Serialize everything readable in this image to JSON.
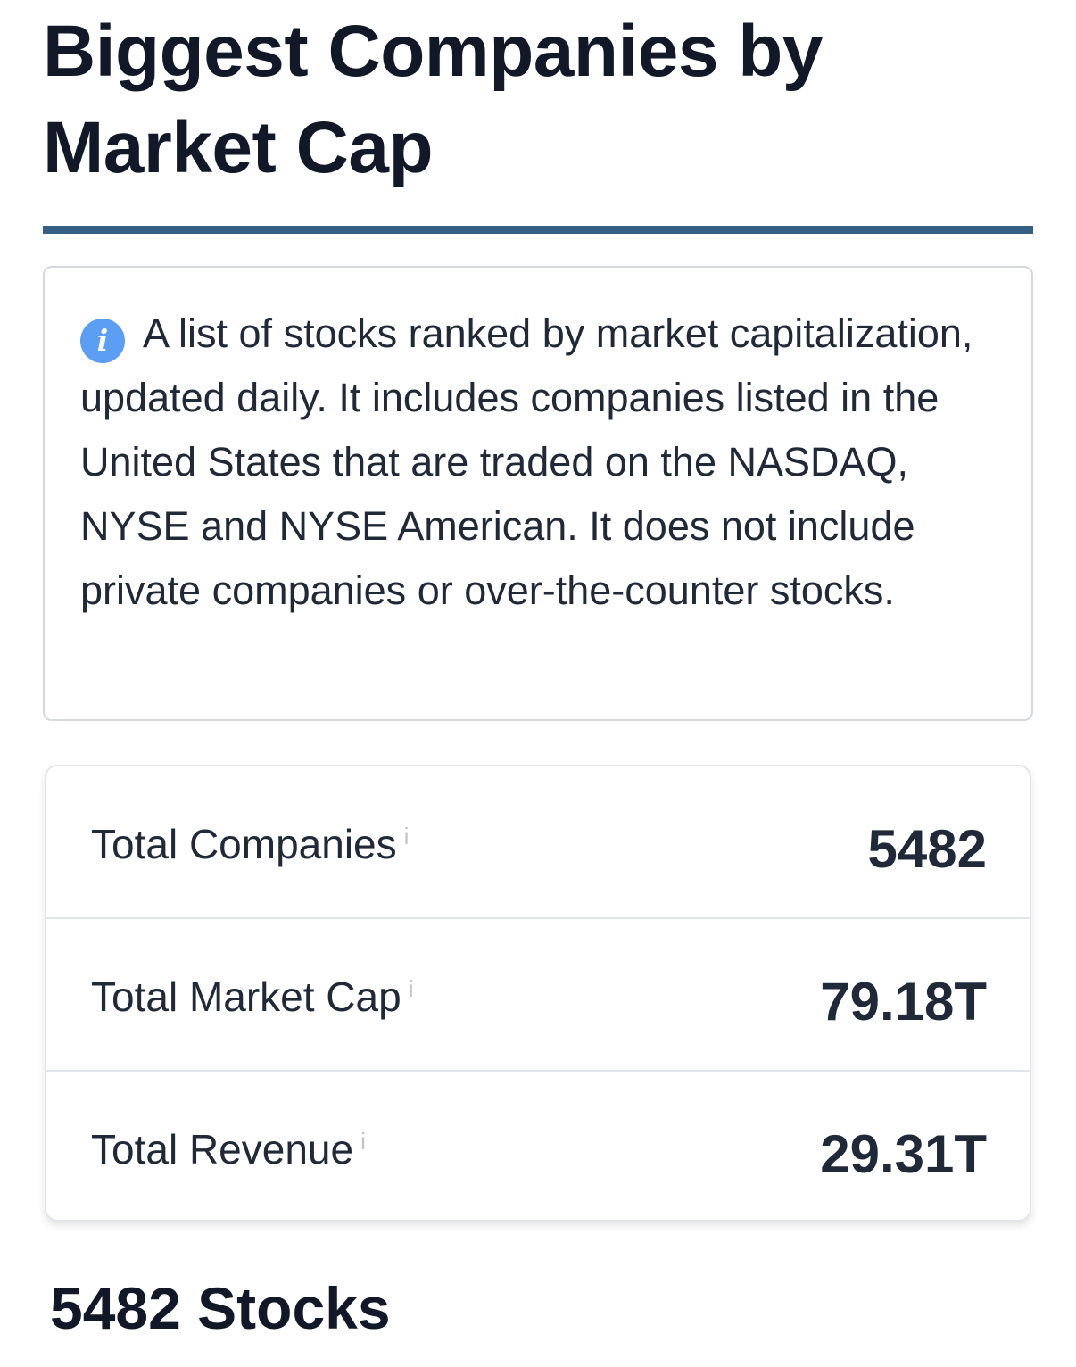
{
  "page": {
    "title": "Biggest Companies by Market Cap"
  },
  "info": {
    "icon": "info-icon",
    "icon_glyph": "i",
    "text": "A list of stocks ranked by market capitalization, updated daily. It includes companies listed in the United States that are traded on the NASDAQ, NYSE and NYSE American. It does not include private companies or over-the-counter stocks."
  },
  "stats": [
    {
      "label": "Total Companies",
      "tooltip_glyph": "i",
      "value": "5482"
    },
    {
      "label": "Total Market Cap",
      "tooltip_glyph": "i",
      "value": "79.18T"
    },
    {
      "label": "Total Revenue",
      "tooltip_glyph": "i",
      "value": "29.31T"
    }
  ],
  "stocks_heading": "5482 Stocks",
  "colors": {
    "accent_rule": "#346085",
    "info_icon": "#5b9ef3",
    "text": "#111827"
  }
}
